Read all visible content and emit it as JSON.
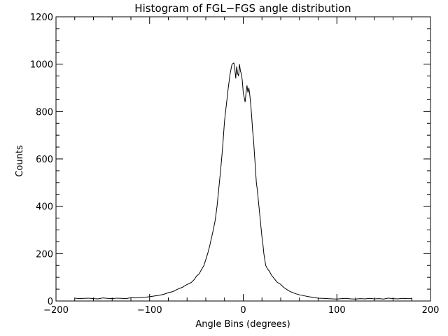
{
  "chart_data": {
    "type": "line",
    "title": "Histogram of FGL−FGS angle distribution",
    "xlabel": "Angle Bins (degrees)",
    "ylabel": "Counts",
    "xlim": [
      -200,
      200
    ],
    "ylim": [
      0,
      1200
    ],
    "x_ticks": [
      "−200",
      "−100",
      "0",
      "100",
      "200"
    ],
    "y_ticks": [
      "0",
      "200",
      "400",
      "600",
      "800",
      "1000",
      "1200"
    ],
    "grid": false,
    "series": [
      {
        "x": [
          -180,
          -175,
          -170,
          -165,
          -160,
          -155,
          -150,
          -145,
          -140,
          -135,
          -130,
          -125,
          -120,
          -115,
          -110,
          -105,
          -100,
          -95,
          -90,
          -85,
          -80,
          -75,
          -70,
          -65,
          -60,
          -57,
          -55,
          -52,
          -50,
          -47,
          -45,
          -42,
          -40,
          -38,
          -36,
          -34,
          -32,
          -30,
          -28,
          -26,
          -24,
          -22,
          -20,
          -18,
          -16,
          -14,
          -12,
          -10,
          -9,
          -8,
          -7,
          -6,
          -5,
          -4,
          -3,
          -2,
          -1,
          0,
          1,
          2,
          3,
          4,
          5,
          6,
          7,
          8,
          9,
          10,
          11,
          12,
          13,
          14,
          15,
          16,
          17,
          18,
          19,
          20,
          21,
          22,
          23,
          24,
          26,
          28,
          30,
          32,
          34,
          36,
          38,
          40,
          42,
          44,
          46,
          48,
          50,
          55,
          60,
          65,
          70,
          75,
          80,
          85,
          90,
          95,
          100,
          105,
          110,
          115,
          120,
          125,
          130,
          135,
          140,
          145,
          150,
          155,
          160,
          165,
          170,
          175,
          180
        ],
        "values": [
          12,
          10,
          11,
          12,
          10,
          9,
          13,
          11,
          10,
          12,
          11,
          10,
          14,
          13,
          15,
          16,
          18,
          21,
          24,
          28,
          35,
          40,
          50,
          58,
          70,
          75,
          80,
          92,
          105,
          115,
          130,
          150,
          175,
          200,
          230,
          265,
          300,
          340,
          400,
          480,
          560,
          650,
          760,
          830,
          900,
          960,
          1000,
          1005,
          980,
          940,
          990,
          960,
          950,
          1000,
          970,
          960,
          930,
          880,
          860,
          840,
          880,
          910,
          880,
          900,
          870,
          830,
          780,
          720,
          680,
          620,
          560,
          500,
          470,
          430,
          390,
          350,
          310,
          270,
          240,
          200,
          175,
          150,
          135,
          125,
          110,
          100,
          90,
          80,
          75,
          70,
          62,
          55,
          50,
          45,
          40,
          32,
          26,
          22,
          18,
          15,
          12,
          11,
          10,
          9,
          8,
          10,
          11,
          9,
          8,
          10,
          9,
          11,
          9,
          10,
          8,
          12,
          10,
          9,
          11,
          10,
          10
        ]
      }
    ]
  }
}
